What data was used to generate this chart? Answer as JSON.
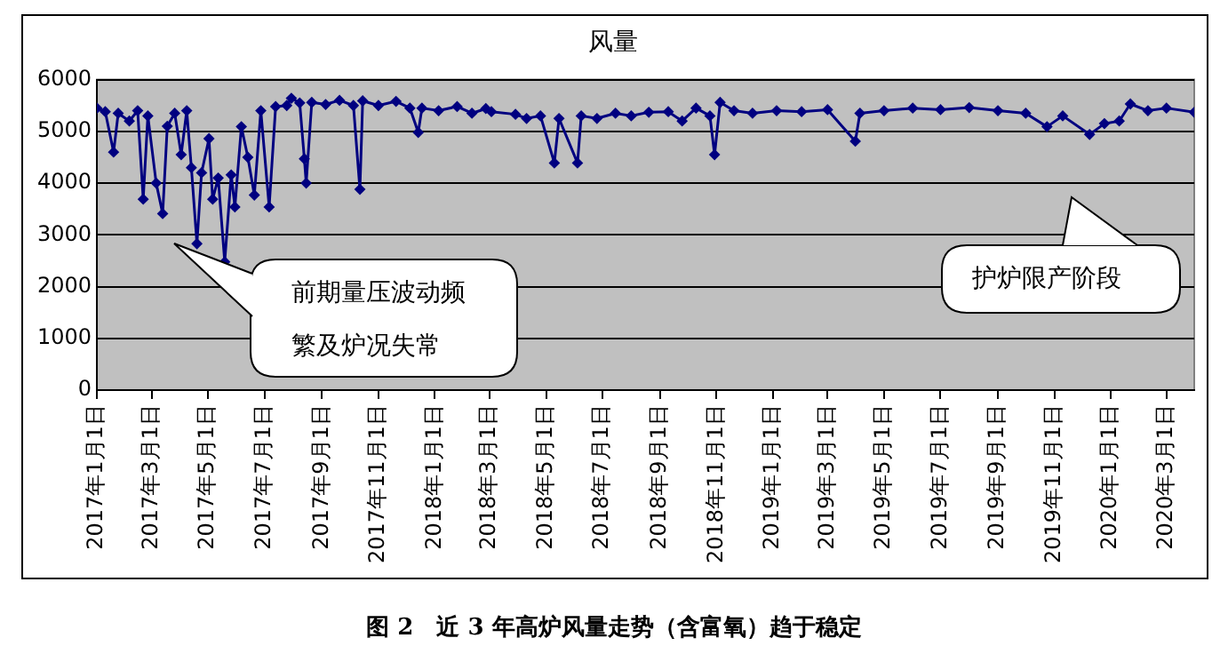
{
  "chart_data": {
    "type": "line",
    "title": "风量",
    "annotations": [
      "前期量压波动频繁及炉况失常",
      "护炉限产阶段",
      "图 2　近 3 年高炉风量走势（含富氧）趋于稳定"
    ],
    "x": [
      "2017-01-01",
      "2017-01-10",
      "2017-01-19",
      "2017-01-24",
      "2017-02-05",
      "2017-02-14",
      "2017-02-20",
      "2017-02-25",
      "2017-03-06",
      "2017-03-13",
      "2017-03-18",
      "2017-03-26",
      "2017-04-02",
      "2017-04-08",
      "2017-04-13",
      "2017-04-19",
      "2017-04-24",
      "2017-05-02",
      "2017-05-06",
      "2017-05-12",
      "2017-05-19",
      "2017-05-26",
      "2017-05-30",
      "2017-06-06",
      "2017-06-13",
      "2017-06-20",
      "2017-06-27",
      "2017-07-06",
      "2017-07-13",
      "2017-07-25",
      "2017-07-30",
      "2017-08-08",
      "2017-08-13",
      "2017-08-15",
      "2017-08-21",
      "2017-09-05",
      "2017-09-20",
      "2017-10-05",
      "2017-10-12",
      "2017-10-15",
      "2017-11-01",
      "2017-11-20",
      "2017-12-05",
      "2017-12-14",
      "2017-12-18",
      "2018-01-05",
      "2018-01-25",
      "2018-02-10",
      "2018-02-25",
      "2018-03-03",
      "2018-03-29",
      "2018-04-10",
      "2018-04-25",
      "2018-05-10",
      "2018-05-15",
      "2018-06-04",
      "2018-06-08",
      "2018-06-25",
      "2018-07-15",
      "2018-08-01",
      "2018-08-20",
      "2018-09-10",
      "2018-09-25",
      "2018-10-10",
      "2018-10-25",
      "2018-10-30",
      "2018-11-05",
      "2018-11-20",
      "2018-12-10",
      "2019-01-05",
      "2019-02-01",
      "2019-03-01",
      "2019-03-31",
      "2019-04-05",
      "2019-05-01",
      "2019-06-01",
      "2019-07-01",
      "2019-08-01",
      "2019-09-01",
      "2019-10-01",
      "2019-10-24",
      "2019-11-10",
      "2019-12-09",
      "2019-12-25",
      "2020-01-10",
      "2020-01-22",
      "2020-02-10",
      "2020-03-01",
      "2020-03-31"
    ],
    "series": [
      {
        "color": "#000080",
        "values": [
          5450,
          5380,
          4600,
          5350,
          5200,
          5400,
          3690,
          5300,
          4000,
          3410,
          5100,
          5350,
          4550,
          5400,
          4300,
          2830,
          4200,
          4860,
          3690,
          4100,
          2480,
          4160,
          3540,
          5090,
          4500,
          3770,
          5400,
          3540,
          5480,
          5500,
          5640,
          5550,
          4470,
          4000,
          5560,
          5520,
          5600,
          5500,
          3880,
          5590,
          5500,
          5580,
          5450,
          4980,
          5450,
          5400,
          5480,
          5350,
          5440,
          5380,
          5330,
          5250,
          5300,
          4390,
          5250,
          4390,
          5300,
          5250,
          5350,
          5300,
          5370,
          5380,
          5200,
          5450,
          5300,
          4550,
          5560,
          5400,
          5350,
          5400,
          5380,
          5420,
          4810,
          5350,
          5400,
          5450,
          5420,
          5460,
          5400,
          5350,
          5090,
          5300,
          4940,
          5150,
          5200,
          5530,
          5400,
          5450,
          5370
        ]
      }
    ],
    "xlim": [
      "2017-01-01",
      "2020-03-31"
    ],
    "xticks": [
      {
        "value": "2017-01-01",
        "label": "2017年1月1日"
      },
      {
        "value": "2017-03-01",
        "label": "2017年3月1日"
      },
      {
        "value": "2017-05-01",
        "label": "2017年5月1日"
      },
      {
        "value": "2017-07-01",
        "label": "2017年7月1日"
      },
      {
        "value": "2017-09-01",
        "label": "2017年9月1日"
      },
      {
        "value": "2017-11-01",
        "label": "2017年11月1日"
      },
      {
        "value": "2018-01-01",
        "label": "2018年1月1日"
      },
      {
        "value": "2018-03-01",
        "label": "2018年3月1日"
      },
      {
        "value": "2018-05-01",
        "label": "2018年5月1日"
      },
      {
        "value": "2018-07-01",
        "label": "2018年7月1日"
      },
      {
        "value": "2018-09-01",
        "label": "2018年9月1日"
      },
      {
        "value": "2018-11-01",
        "label": "2018年11月1日"
      },
      {
        "value": "2019-01-01",
        "label": "2019年1月1日"
      },
      {
        "value": "2019-03-01",
        "label": "2019年3月1日"
      },
      {
        "value": "2019-05-01",
        "label": "2019年5月1日"
      },
      {
        "value": "2019-07-01",
        "label": "2019年7月1日"
      },
      {
        "value": "2019-09-01",
        "label": "2019年9月1日"
      },
      {
        "value": "2019-11-01",
        "label": "2019年11月1日"
      },
      {
        "value": "2020-01-01",
        "label": "2020年1月1日"
      },
      {
        "value": "2020-03-01",
        "label": "2020年3月1日"
      }
    ],
    "ylim": [
      0,
      6000
    ],
    "yticks": [
      0,
      1000,
      2000,
      3000,
      4000,
      5000,
      6000
    ],
    "grid": "y",
    "legend": false,
    "marker": "diamond",
    "line_style": "solid"
  }
}
